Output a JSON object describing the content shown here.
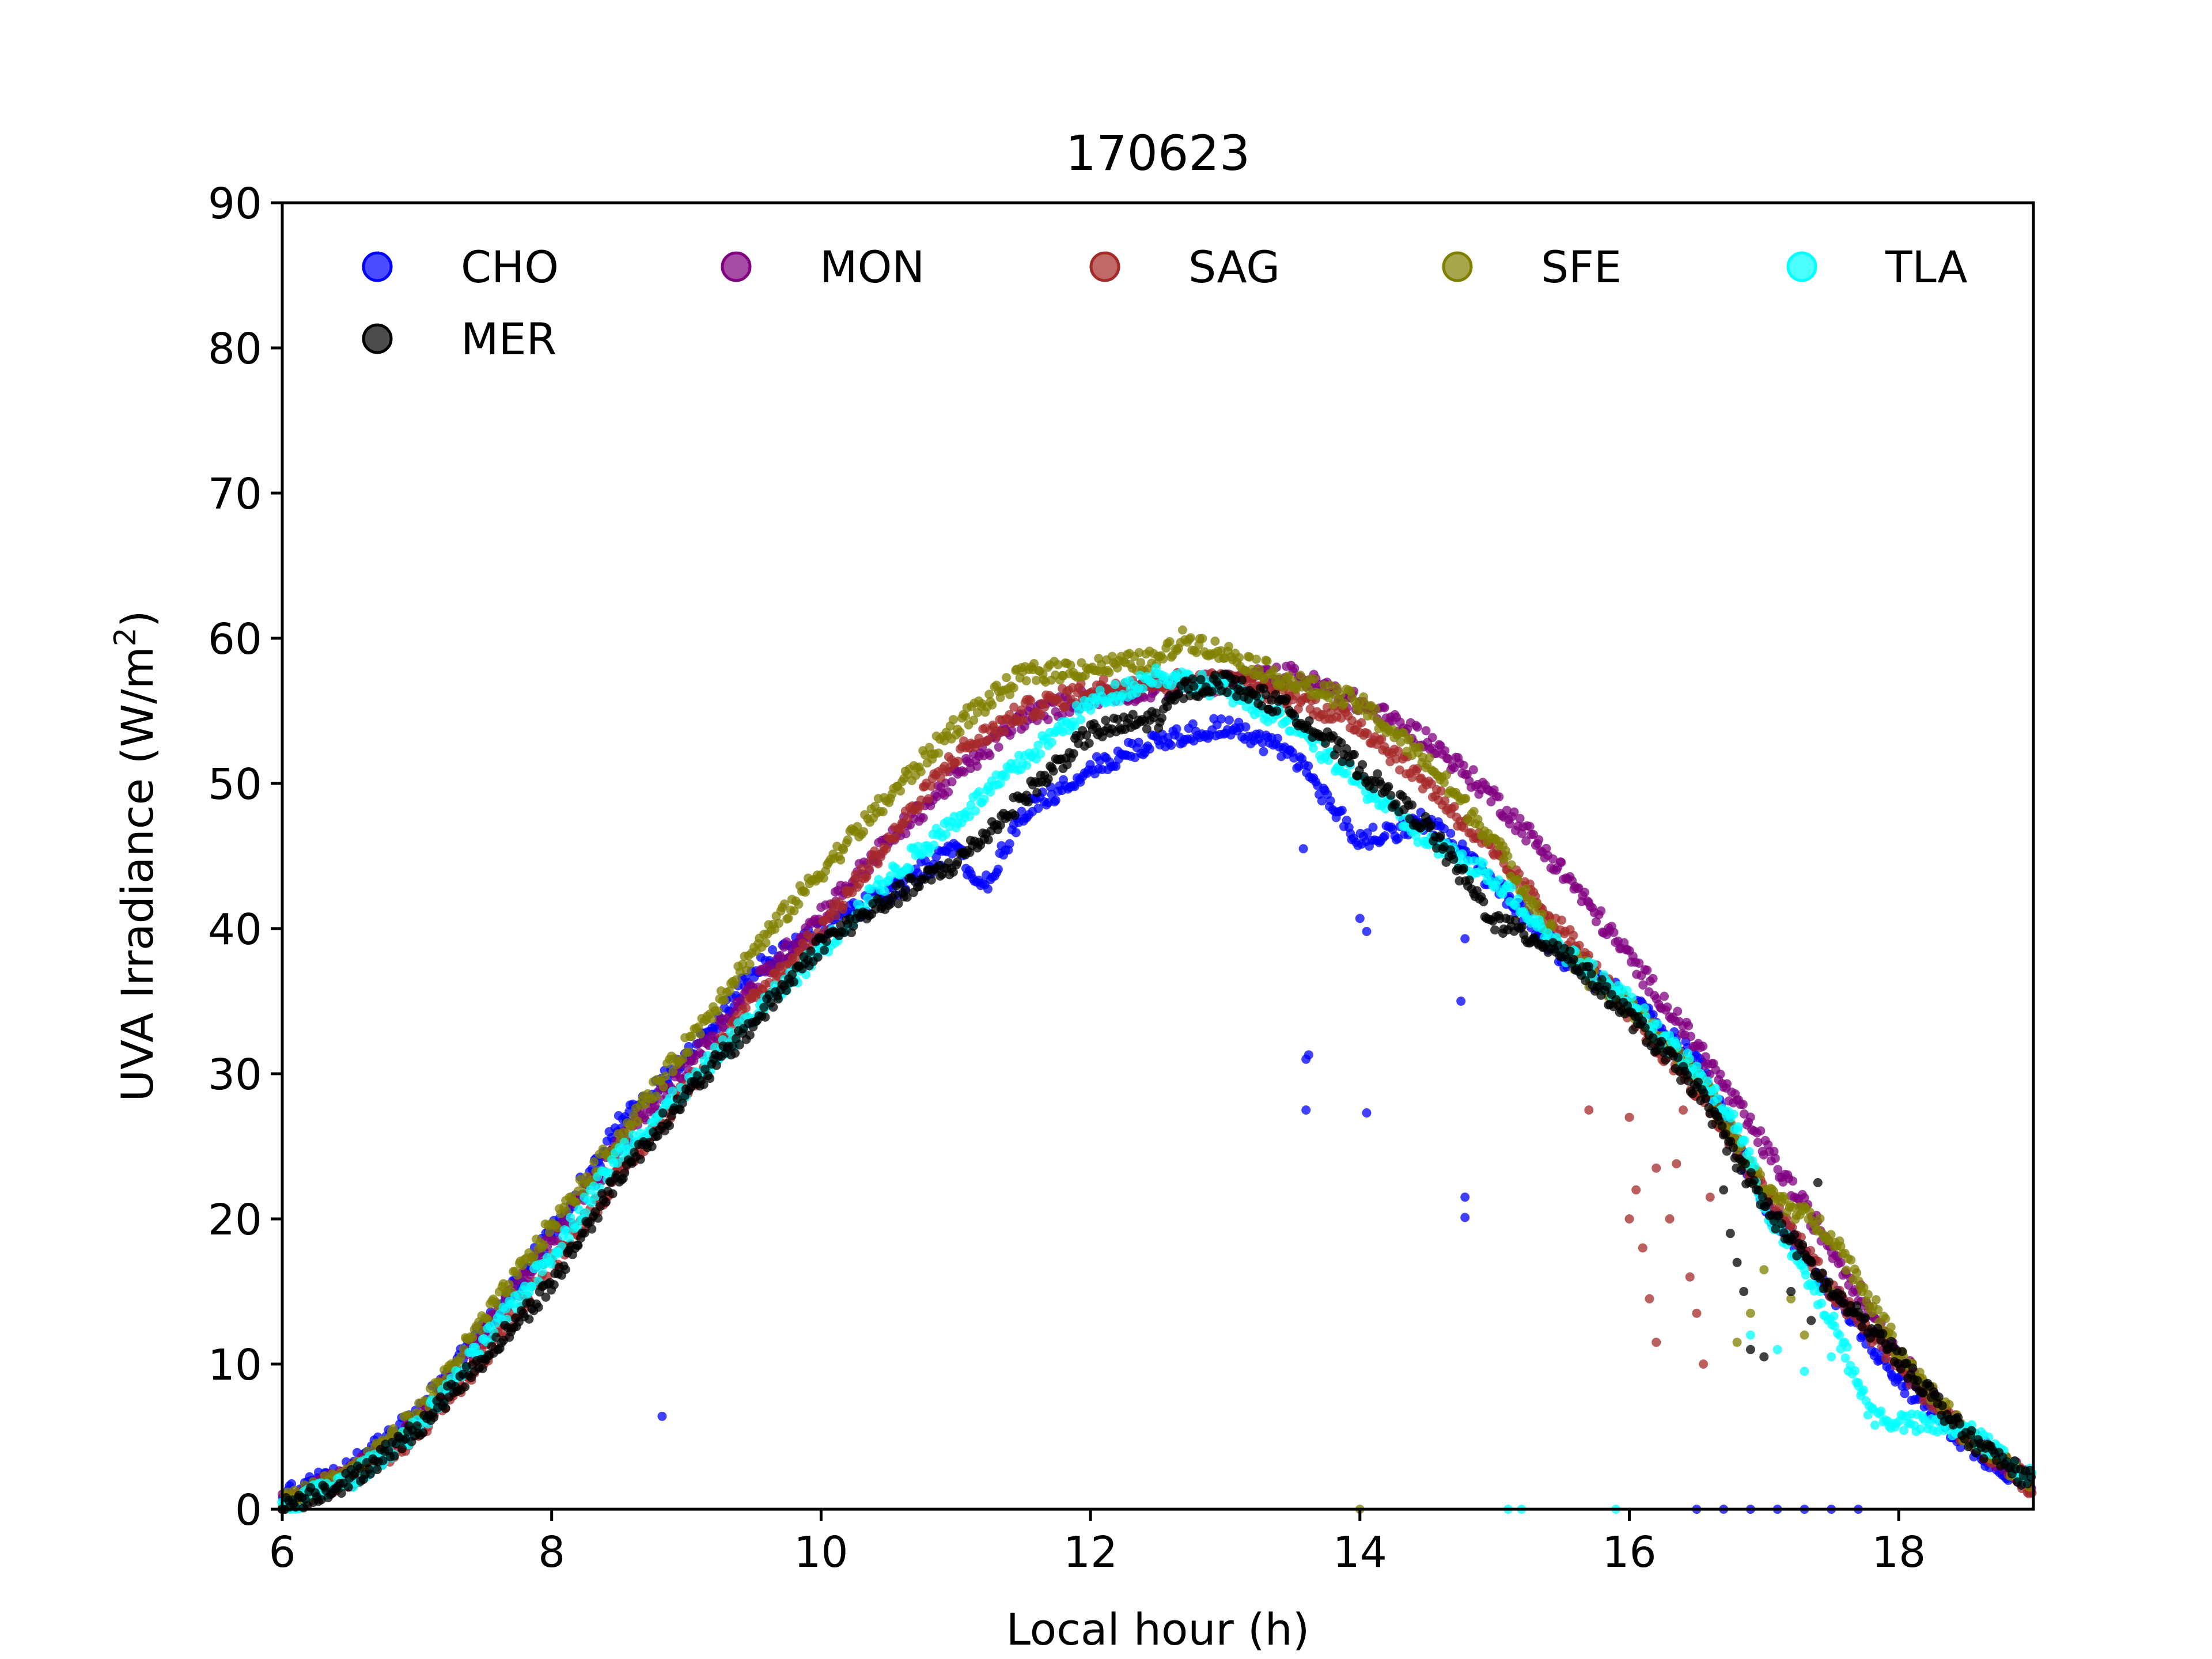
{
  "chart_data": {
    "type": "scatter",
    "title": "170623",
    "xlabel": "Local hour (h)",
    "ylabel": "UVA Irradiance (W/m",
    "ylabel_sup": "2",
    "ylabel_close": ")",
    "xlim": [
      6,
      19
    ],
    "ylim": [
      0,
      90
    ],
    "xticks": [
      6,
      8,
      10,
      12,
      14,
      16,
      18
    ],
    "yticks": [
      0,
      10,
      20,
      30,
      40,
      50,
      60,
      70,
      80,
      90
    ],
    "xtick_labels": [
      "6",
      "8",
      "10",
      "12",
      "14",
      "16",
      "18"
    ],
    "ytick_labels": [
      "0",
      "10",
      "20",
      "30",
      "40",
      "50",
      "60",
      "70",
      "80",
      "90"
    ],
    "grid": false,
    "legend_position": "top",
    "series": [
      {
        "name": "CHO",
        "color": "#0000ff",
        "points": [
          [
            6.0,
            0.8
          ],
          [
            6.5,
            2.8
          ],
          [
            7.0,
            6.5
          ],
          [
            7.5,
            12.5
          ],
          [
            8.0,
            19.0
          ],
          [
            8.5,
            26.5
          ],
          [
            9.0,
            31.0
          ],
          [
            9.5,
            37.0
          ],
          [
            10.0,
            40.0
          ],
          [
            10.5,
            42.5
          ],
          [
            11.0,
            45.5
          ],
          [
            11.2,
            42.5
          ],
          [
            11.5,
            48.0
          ],
          [
            12.0,
            51.0
          ],
          [
            12.5,
            53.0
          ],
          [
            13.0,
            54.0
          ],
          [
            13.5,
            52.0
          ],
          [
            14.0,
            46.0
          ],
          [
            14.5,
            47.5
          ],
          [
            15.0,
            43.0
          ],
          [
            15.5,
            38.0
          ],
          [
            16.0,
            35.0
          ],
          [
            16.5,
            31.0
          ],
          [
            17.0,
            21.0
          ],
          [
            17.5,
            15.0
          ],
          [
            18.0,
            9.0
          ],
          [
            18.5,
            4.5
          ],
          [
            19.0,
            1.5
          ]
        ],
        "outliers": [
          [
            8.82,
            6.4
          ],
          [
            13.58,
            45.5
          ],
          [
            13.6,
            31.0
          ],
          [
            13.62,
            31.3
          ],
          [
            13.6,
            27.5
          ],
          [
            14.0,
            40.7
          ],
          [
            14.05,
            39.8
          ],
          [
            14.05,
            27.3
          ],
          [
            14.75,
            35.0
          ],
          [
            14.78,
            39.3
          ],
          [
            14.78,
            21.5
          ],
          [
            14.78,
            20.1
          ],
          [
            16.5,
            0
          ],
          [
            16.7,
            0
          ],
          [
            16.9,
            0
          ],
          [
            17.1,
            0
          ],
          [
            17.3,
            0
          ],
          [
            17.5,
            0
          ],
          [
            17.7,
            0
          ]
        ]
      },
      {
        "name": "MON",
        "color": "#800080",
        "points": [
          [
            6.0,
            0.5
          ],
          [
            6.5,
            2.3
          ],
          [
            7.0,
            6.0
          ],
          [
            7.5,
            12.0
          ],
          [
            8.0,
            18.5
          ],
          [
            8.5,
            25.0
          ],
          [
            9.0,
            30.5
          ],
          [
            9.5,
            36.0
          ],
          [
            10.0,
            41.0
          ],
          [
            10.5,
            46.0
          ],
          [
            11.0,
            50.5
          ],
          [
            11.5,
            54.5
          ],
          [
            12.0,
            56.0
          ],
          [
            12.5,
            56.5
          ],
          [
            13.0,
            57.0
          ],
          [
            13.5,
            57.5
          ],
          [
            14.0,
            55.5
          ],
          [
            14.5,
            53.0
          ],
          [
            15.0,
            49.0
          ],
          [
            15.5,
            44.0
          ],
          [
            16.0,
            38.0
          ],
          [
            16.5,
            32.0
          ],
          [
            17.0,
            25.0
          ],
          [
            17.5,
            18.0
          ],
          [
            18.0,
            10.5
          ],
          [
            18.5,
            5.0
          ],
          [
            19.0,
            1.8
          ]
        ],
        "outliers": []
      },
      {
        "name": "SAG",
        "color": "#a52a2a",
        "points": [
          [
            6.0,
            0.3
          ],
          [
            6.5,
            2.0
          ],
          [
            7.0,
            5.0
          ],
          [
            7.5,
            10.5
          ],
          [
            8.0,
            17.0
          ],
          [
            8.5,
            23.0
          ],
          [
            9.0,
            29.0
          ],
          [
            9.5,
            35.0
          ],
          [
            10.0,
            40.0
          ],
          [
            10.5,
            46.0
          ],
          [
            11.0,
            52.0
          ],
          [
            11.5,
            55.0
          ],
          [
            12.0,
            56.5
          ],
          [
            12.5,
            57.0
          ],
          [
            13.0,
            57.0
          ],
          [
            13.5,
            56.0
          ],
          [
            14.0,
            54.0
          ],
          [
            14.5,
            50.0
          ],
          [
            15.0,
            45.0
          ],
          [
            15.5,
            40.0
          ],
          [
            16.0,
            34.0
          ],
          [
            16.5,
            29.0
          ],
          [
            17.0,
            22.0
          ],
          [
            17.5,
            15.0
          ],
          [
            18.0,
            10.0
          ],
          [
            18.5,
            5.0
          ],
          [
            19.0,
            1.5
          ]
        ],
        "outliers": [
          [
            15.7,
            27.5
          ],
          [
            16.0,
            27.0
          ],
          [
            16.05,
            22.0
          ],
          [
            16.1,
            18.0
          ],
          [
            16.15,
            14.5
          ],
          [
            16.2,
            11.5
          ],
          [
            16.3,
            20.0
          ],
          [
            16.35,
            23.8
          ],
          [
            16.4,
            27.5
          ],
          [
            16.45,
            16.0
          ],
          [
            16.5,
            13.5
          ],
          [
            16.55,
            10.0
          ],
          [
            16.6,
            21.5
          ],
          [
            16.2,
            23.5
          ],
          [
            16.0,
            20.0
          ]
        ]
      },
      {
        "name": "SFE",
        "color": "#808000",
        "points": [
          [
            6.0,
            0.3
          ],
          [
            6.5,
            2.5
          ],
          [
            7.0,
            6.5
          ],
          [
            7.5,
            13.0
          ],
          [
            8.0,
            19.5
          ],
          [
            8.5,
            25.5
          ],
          [
            9.0,
            32.0
          ],
          [
            9.5,
            38.5
          ],
          [
            10.0,
            44.0
          ],
          [
            10.5,
            49.0
          ],
          [
            11.0,
            54.0
          ],
          [
            11.5,
            57.5
          ],
          [
            12.0,
            58.0
          ],
          [
            12.5,
            58.5
          ],
          [
            12.7,
            60.0
          ],
          [
            13.0,
            59.0
          ],
          [
            13.5,
            57.0
          ],
          [
            14.0,
            55.5
          ],
          [
            14.5,
            51.5
          ],
          [
            15.0,
            46.0
          ],
          [
            15.5,
            38.5
          ],
          [
            16.0,
            34.5
          ],
          [
            16.5,
            30.0
          ],
          [
            17.0,
            22.0
          ],
          [
            17.5,
            19.0
          ],
          [
            18.0,
            11.0
          ],
          [
            18.5,
            5.0
          ],
          [
            19.0,
            1.8
          ]
        ],
        "outliers": [
          [
            14.0,
            0
          ],
          [
            15.7,
            36.0
          ],
          [
            16.8,
            11.5
          ],
          [
            16.9,
            13.5
          ],
          [
            17.0,
            16.5
          ],
          [
            17.2,
            14.5
          ],
          [
            17.3,
            12.0
          ],
          [
            17.5,
            15.0
          ]
        ]
      },
      {
        "name": "TLA",
        "color": "#00ffff",
        "points": [
          [
            6.0,
            0.2
          ],
          [
            6.5,
            2.0
          ],
          [
            7.0,
            5.5
          ],
          [
            7.5,
            11.5
          ],
          [
            8.0,
            17.5
          ],
          [
            8.5,
            24.5
          ],
          [
            9.0,
            29.0
          ],
          [
            9.5,
            34.0
          ],
          [
            10.0,
            38.5
          ],
          [
            10.5,
            43.5
          ],
          [
            11.0,
            47.5
          ],
          [
            11.5,
            51.5
          ],
          [
            12.0,
            55.5
          ],
          [
            12.5,
            57.5
          ],
          [
            13.0,
            56.5
          ],
          [
            13.5,
            54.0
          ],
          [
            14.0,
            50.0
          ],
          [
            14.5,
            46.0
          ],
          [
            15.0,
            43.5
          ],
          [
            15.5,
            38.5
          ],
          [
            16.0,
            35.0
          ],
          [
            16.5,
            30.0
          ],
          [
            16.8,
            26.5
          ],
          [
            17.0,
            21.0
          ],
          [
            17.5,
            13.0
          ],
          [
            17.8,
            6.5
          ],
          [
            18.0,
            6.0
          ],
          [
            18.5,
            5.5
          ],
          [
            19.0,
            2.0
          ]
        ],
        "outliers": [
          [
            15.1,
            0
          ],
          [
            15.2,
            0
          ],
          [
            15.9,
            0
          ],
          [
            16.9,
            12.0
          ],
          [
            17.1,
            11.0
          ],
          [
            17.3,
            9.5
          ],
          [
            17.5,
            10.5
          ],
          [
            17.6,
            11.5
          ],
          [
            17.7,
            8.5
          ]
        ]
      },
      {
        "name": "MER",
        "color": "#000000",
        "points": [
          [
            6.0,
            0.2
          ],
          [
            6.5,
            2.0
          ],
          [
            7.0,
            5.5
          ],
          [
            7.5,
            10.5
          ],
          [
            8.0,
            15.5
          ],
          [
            8.5,
            23.0
          ],
          [
            9.0,
            28.5
          ],
          [
            9.5,
            33.5
          ],
          [
            10.0,
            39.0
          ],
          [
            10.5,
            42.0
          ],
          [
            11.0,
            44.5
          ],
          [
            11.5,
            49.0
          ],
          [
            12.0,
            53.5
          ],
          [
            12.5,
            54.5
          ],
          [
            12.7,
            56.5
          ],
          [
            13.0,
            57.0
          ],
          [
            13.5,
            55.0
          ],
          [
            14.0,
            51.0
          ],
          [
            14.5,
            47.0
          ],
          [
            15.0,
            40.5
          ],
          [
            15.5,
            38.5
          ],
          [
            16.0,
            34.0
          ],
          [
            16.5,
            29.0
          ],
          [
            17.0,
            21.0
          ],
          [
            17.5,
            15.0
          ],
          [
            18.0,
            10.5
          ],
          [
            18.5,
            5.0
          ],
          [
            19.0,
            1.8
          ]
        ],
        "outliers": [
          [
            16.7,
            22.0
          ],
          [
            16.75,
            19.0
          ],
          [
            16.8,
            17.0
          ],
          [
            16.85,
            15.0
          ],
          [
            16.9,
            11.0
          ],
          [
            17.0,
            10.5
          ],
          [
            17.2,
            15.0
          ],
          [
            17.35,
            13.0
          ],
          [
            17.4,
            22.5
          ]
        ]
      }
    ]
  }
}
